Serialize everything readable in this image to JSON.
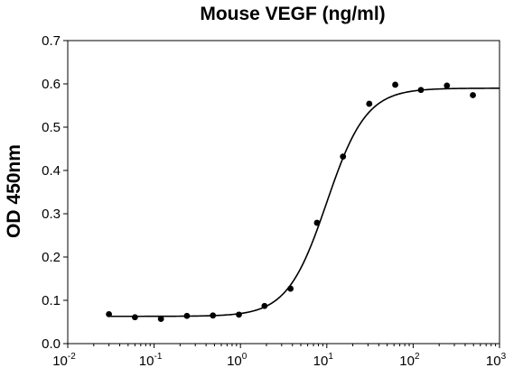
{
  "chart_data": {
    "type": "scatter",
    "title": "Mouse VEGF (ng/ml)",
    "xlabel": "",
    "ylabel": "OD 450nm",
    "x_scale": "log",
    "xlim": [
      0.01,
      1000
    ],
    "ylim": [
      0,
      0.7
    ],
    "x_ticks": [
      {
        "base": "10",
        "exp": "-2",
        "value": 0.01
      },
      {
        "base": "10",
        "exp": "-1",
        "value": 0.1
      },
      {
        "base": "10",
        "exp": "0",
        "value": 1
      },
      {
        "base": "10",
        "exp": "1",
        "value": 10
      },
      {
        "base": "10",
        "exp": "2",
        "value": 100
      },
      {
        "base": "10",
        "exp": "3",
        "value": 1000
      }
    ],
    "y_ticks": [
      "0.0",
      "0.1",
      "0.2",
      "0.3",
      "0.4",
      "0.5",
      "0.6",
      "0.7"
    ],
    "grid": false,
    "legend": "none",
    "points": {
      "x": [
        0.03,
        0.06,
        0.12,
        0.24,
        0.48,
        0.96,
        1.9,
        3.8,
        7.7,
        15.4,
        31,
        62,
        123,
        246,
        492
      ],
      "y": [
        0.068,
        0.061,
        0.057,
        0.064,
        0.065,
        0.067,
        0.087,
        0.127,
        0.279,
        0.432,
        0.554,
        0.598,
        0.586,
        0.596,
        0.574
      ]
    },
    "fit_curve": {
      "model": "4PL",
      "bottom": 0.063,
      "top": 0.59,
      "ec50": 10,
      "hill": 1.9
    },
    "colors": {
      "marker": "#000000",
      "line": "#000000",
      "axis": "#000000"
    }
  }
}
